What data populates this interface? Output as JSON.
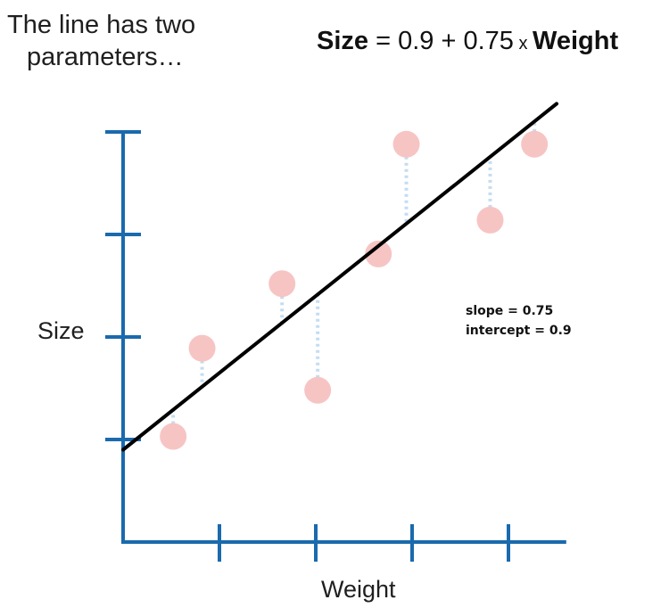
{
  "intro": {
    "line1": "The line has two",
    "line2": "parameters…"
  },
  "equation": {
    "lhs": "Size",
    "rest": " = 0.9 + 0.75",
    "times": " x ",
    "var": "Weight"
  },
  "params": {
    "slope": "slope = 0.75",
    "intercept": "intercept = 0.9"
  },
  "chart_data": {
    "type": "scatter",
    "xlabel": "Weight",
    "ylabel": "Size",
    "xlim": [
      0,
      4.6
    ],
    "ylim": [
      0,
      4.1
    ],
    "x_ticks": [
      1,
      2,
      3,
      4
    ],
    "y_ticks": [
      1,
      2,
      3,
      4
    ],
    "grid": false,
    "points": [
      {
        "x": 0.52,
        "y": 1.03
      },
      {
        "x": 0.82,
        "y": 1.89
      },
      {
        "x": 1.65,
        "y": 2.52
      },
      {
        "x": 2.02,
        "y": 1.48
      },
      {
        "x": 2.65,
        "y": 2.81
      },
      {
        "x": 2.94,
        "y": 3.88
      },
      {
        "x": 3.81,
        "y": 3.14
      },
      {
        "x": 4.27,
        "y": 3.88
      }
    ],
    "fit_line": {
      "slope": 0.75,
      "intercept": 0.9
    },
    "residuals_shown": true,
    "colors": {
      "axis": "#1a6aad",
      "points": "#f7c4c4",
      "line": "#000000",
      "residual": "#c3dcf2"
    }
  }
}
